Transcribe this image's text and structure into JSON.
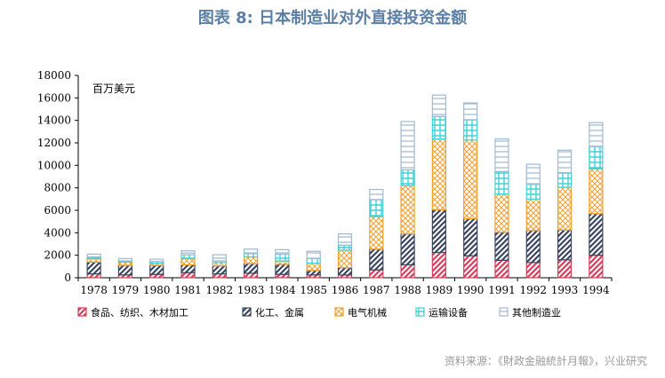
{
  "title": "图表 8: 日本制造业对外直接投资金额",
  "source": "资料来源：《財政金融統計月報》，兴业研究",
  "chart_data": {
    "type": "bar",
    "stacked": true,
    "unit_label": "百万美元",
    "categories": [
      "1978",
      "1979",
      "1980",
      "1981",
      "1982",
      "1983",
      "1984",
      "1985",
      "1986",
      "1987",
      "1988",
      "1989",
      "1990",
      "1991",
      "1992",
      "1993",
      "1994"
    ],
    "ylim": [
      0,
      18000
    ],
    "yticks": [
      "0",
      "2000",
      "4000",
      "6000",
      "8000",
      "10000",
      "12000",
      "14000",
      "16000",
      "18000"
    ],
    "series": [
      {
        "name": "食品、纺织、木材加工",
        "color": "#d0415a",
        "values": [
          350,
          250,
          300,
          450,
          350,
          400,
          300,
          250,
          250,
          700,
          1150,
          2250,
          1950,
          1550,
          1350,
          1600,
          2000
        ]
      },
      {
        "name": "化工、金属",
        "color": "#3a4660",
        "values": [
          1050,
          850,
          800,
          700,
          700,
          850,
          900,
          400,
          650,
          1850,
          2750,
          3800,
          3300,
          2500,
          2850,
          2650,
          3700
        ]
      },
      {
        "name": "电气机械",
        "color": "#f0a030",
        "values": [
          300,
          300,
          200,
          550,
          300,
          600,
          300,
          650,
          1550,
          2900,
          4300,
          6300,
          7000,
          3400,
          2800,
          3800,
          4000
        ]
      },
      {
        "name": "运输设备",
        "color": "#40d0d8",
        "values": [
          150,
          100,
          150,
          350,
          150,
          300,
          600,
          400,
          450,
          1500,
          1400,
          2000,
          1800,
          2000,
          1300,
          1300,
          2000
        ]
      },
      {
        "name": "其他制造业",
        "color": "#a0b8d0",
        "values": [
          250,
          200,
          200,
          350,
          550,
          400,
          400,
          650,
          1000,
          900,
          4300,
          1900,
          1500,
          2900,
          1800,
          2000,
          2100
        ]
      }
    ],
    "grid": false,
    "legend_position": "bottom"
  }
}
